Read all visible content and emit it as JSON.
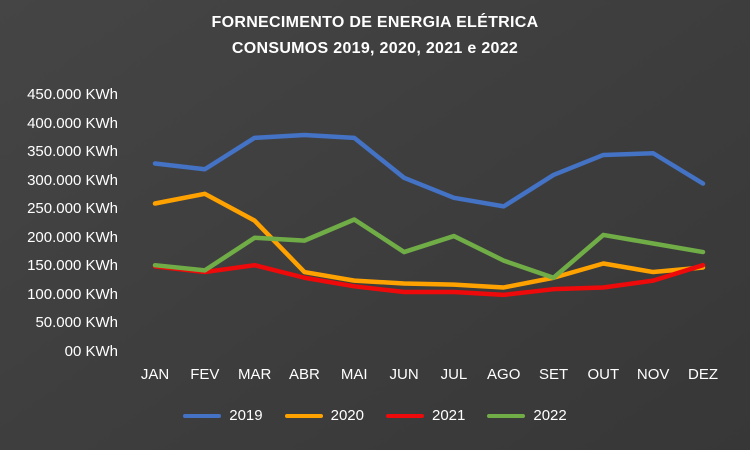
{
  "title": {
    "line1": "FORNECIMENTO DE ENERGIA ELÉTRICA",
    "line2": "CONSUMOS 2019, 2020, 2021 e 2022"
  },
  "chart_data": {
    "type": "line",
    "title": "FORNECIMENTO DE ENERGIA ELÉTRICA CONSUMOS 2019, 2020, 2021 e 2022",
    "xlabel": "",
    "ylabel": "",
    "ylim": [
      0,
      450000
    ],
    "grid": false,
    "legend_position": "bottom",
    "y_unit": "KWh",
    "y_ticks": [
      "450.000 KWh",
      "400.000 KWh",
      "350.000 KWh",
      "300.000 KWh",
      "250.000 KWh",
      "200.000 KWh",
      "150.000 KWh",
      "100.000 KWh",
      "50.000 KWh",
      "00 KWh"
    ],
    "categories": [
      "JAN",
      "FEV",
      "MAR",
      "ABR",
      "MAI",
      "JUN",
      "JUL",
      "AGO",
      "SET",
      "OUT",
      "NOV",
      "DEZ"
    ],
    "series": [
      {
        "name": "2019",
        "color": "#4472C4",
        "values": [
          330000,
          320000,
          375000,
          380000,
          375000,
          305000,
          270000,
          255000,
          310000,
          345000,
          348000,
          295000
        ]
      },
      {
        "name": "2020",
        "color": "#FFA200",
        "values": [
          260000,
          277000,
          230000,
          140000,
          125000,
          120000,
          118000,
          113000,
          130000,
          155000,
          140000,
          148000
        ]
      },
      {
        "name": "2021",
        "color": "#EE0A0A",
        "values": [
          150000,
          140000,
          152000,
          130000,
          115000,
          105000,
          105000,
          100000,
          110000,
          113000,
          125000,
          152000
        ]
      },
      {
        "name": "2022",
        "color": "#70AD47",
        "values": [
          152000,
          143000,
          200000,
          195000,
          232000,
          175000,
          203000,
          160000,
          130000,
          205000,
          190000,
          175000
        ]
      }
    ]
  }
}
